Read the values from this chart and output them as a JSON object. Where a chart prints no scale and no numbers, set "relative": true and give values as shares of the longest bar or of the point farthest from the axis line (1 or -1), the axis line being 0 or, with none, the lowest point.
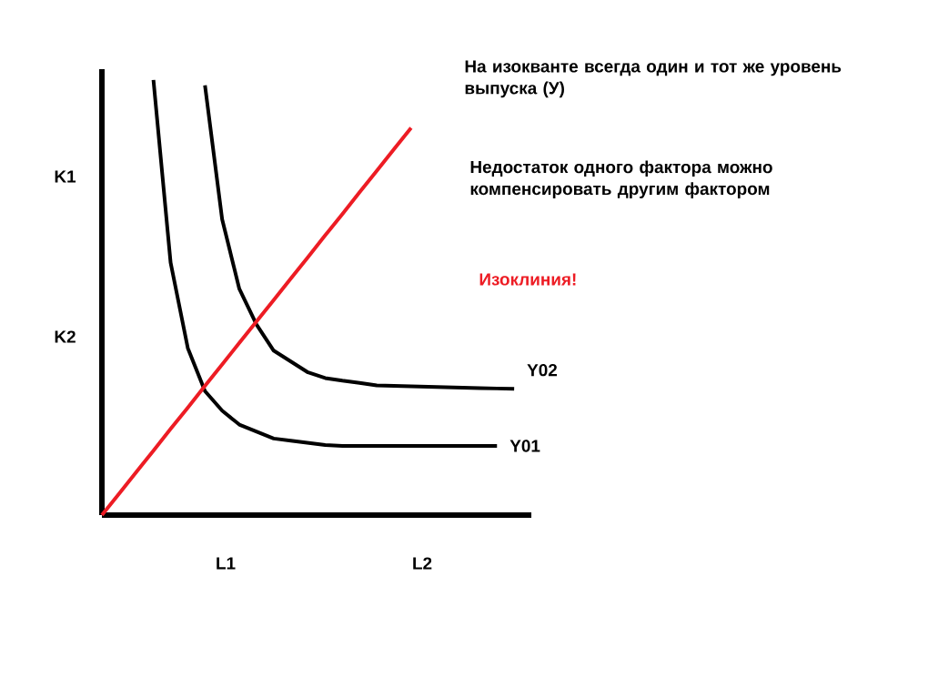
{
  "chart_data": {
    "type": "line",
    "relative": true,
    "marker": "none",
    "line_style": "solid",
    "categories": [
      null,
      null,
      null,
      null,
      null,
      null,
      null,
      null,
      null,
      null,
      null,
      null,
      null,
      null,
      null,
      null,
      null,
      null,
      null,
      null,
      null,
      null,
      null,
      null,
      null
    ],
    "series": [
      {
        "name": "Y01",
        "color": "#000000",
        "values": [
          null,
          null,
          null,
          1.0,
          0.58,
          0.384,
          0.285,
          0.24,
          0.208,
          0.192,
          0.176,
          0.171,
          0.166,
          0.161,
          0.159,
          0.159,
          0.159,
          0.159,
          0.159,
          0.159,
          0.159,
          0.159,
          0.159,
          0.159,
          null
        ]
      },
      {
        "name": "Y02",
        "color": "#000000",
        "values": [
          null,
          null,
          null,
          null,
          null,
          null,
          0.988,
          0.68,
          0.52,
          0.438,
          0.378,
          0.353,
          0.328,
          0.315,
          0.309,
          0.304,
          0.298,
          0.297,
          0.296,
          0.295,
          0.294,
          0.293,
          0.292,
          0.291,
          0.29
        ]
      },
      {
        "color": "#ed1c24",
        "values": [
          0,
          0.049,
          0.099,
          0.148,
          0.198,
          0.247,
          0.297,
          0.346,
          0.396,
          0.445,
          0.494,
          0.544,
          0.593,
          0.643,
          0.692,
          0.742,
          0.791,
          0.841,
          0.89,
          null,
          null,
          null,
          null,
          null,
          null
        ]
      }
    ],
    "annotations": [
      "На изокванте всегда один и тот же уровень выпуска (У)",
      "Недостаток одного фактора можно компенсировать другим фактором",
      "Изоклиния!",
      "K1",
      "K2",
      "L1",
      "L2"
    ]
  }
}
